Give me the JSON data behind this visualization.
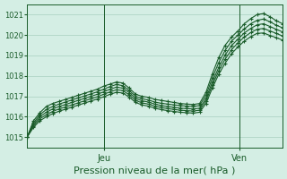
{
  "title": "Pression niveau de la mer( hPa )",
  "bg_color": "#d4eee4",
  "grid_color": "#a8cfc0",
  "line_color": "#1a5c2a",
  "ylim": [
    1014.5,
    1021.5
  ],
  "yticks": [
    1015,
    1016,
    1017,
    1018,
    1019,
    1020,
    1021
  ],
  "xtick_labels": [
    "Jeu",
    "Ven"
  ],
  "xtick_positions": [
    0.3,
    0.83
  ],
  "n_points": 41,
  "lines": [
    [
      1015.0,
      1015.8,
      1016.2,
      1016.5,
      1016.65,
      1016.75,
      1016.85,
      1016.95,
      1017.05,
      1017.15,
      1017.25,
      1017.35,
      1017.5,
      1017.6,
      1017.7,
      1017.65,
      1017.4,
      1017.1,
      1017.0,
      1016.95,
      1016.85,
      1016.8,
      1016.75,
      1016.7,
      1016.65,
      1016.62,
      1016.6,
      1016.65,
      1017.2,
      1018.1,
      1018.9,
      1019.5,
      1019.9,
      1020.2,
      1020.55,
      1020.8,
      1021.0,
      1021.05,
      1020.9,
      1020.7,
      1020.55
    ],
    [
      1015.0,
      1015.7,
      1016.1,
      1016.35,
      1016.5,
      1016.62,
      1016.72,
      1016.82,
      1016.92,
      1017.02,
      1017.12,
      1017.22,
      1017.35,
      1017.48,
      1017.58,
      1017.52,
      1017.28,
      1017.0,
      1016.88,
      1016.82,
      1016.72,
      1016.66,
      1016.62,
      1016.58,
      1016.55,
      1016.52,
      1016.5,
      1016.55,
      1017.05,
      1017.9,
      1018.65,
      1019.25,
      1019.7,
      1020.0,
      1020.3,
      1020.55,
      1020.72,
      1020.78,
      1020.65,
      1020.48,
      1020.35
    ],
    [
      1015.0,
      1015.62,
      1016.0,
      1016.22,
      1016.38,
      1016.5,
      1016.6,
      1016.7,
      1016.8,
      1016.9,
      1017.0,
      1017.1,
      1017.22,
      1017.35,
      1017.45,
      1017.4,
      1017.18,
      1016.9,
      1016.78,
      1016.72,
      1016.62,
      1016.55,
      1016.5,
      1016.46,
      1016.42,
      1016.4,
      1016.38,
      1016.42,
      1016.9,
      1017.7,
      1018.42,
      1019.02,
      1019.48,
      1019.8,
      1020.1,
      1020.32,
      1020.5,
      1020.55,
      1020.42,
      1020.28,
      1020.15
    ],
    [
      1015.0,
      1015.55,
      1015.9,
      1016.1,
      1016.26,
      1016.38,
      1016.48,
      1016.58,
      1016.68,
      1016.78,
      1016.88,
      1016.98,
      1017.1,
      1017.22,
      1017.32,
      1017.28,
      1017.07,
      1016.8,
      1016.68,
      1016.62,
      1016.52,
      1016.45,
      1016.4,
      1016.36,
      1016.32,
      1016.3,
      1016.28,
      1016.32,
      1016.78,
      1017.55,
      1018.25,
      1018.82,
      1019.28,
      1019.62,
      1019.9,
      1020.12,
      1020.28,
      1020.32,
      1020.2,
      1020.08,
      1019.95
    ],
    [
      1015.0,
      1015.48,
      1015.8,
      1016.0,
      1016.15,
      1016.27,
      1016.37,
      1016.47,
      1016.57,
      1016.67,
      1016.77,
      1016.87,
      1016.98,
      1017.1,
      1017.2,
      1017.16,
      1016.96,
      1016.7,
      1016.58,
      1016.52,
      1016.42,
      1016.35,
      1016.3,
      1016.26,
      1016.22,
      1016.2,
      1016.18,
      1016.22,
      1016.65,
      1017.4,
      1018.08,
      1018.62,
      1019.08,
      1019.42,
      1019.7,
      1019.92,
      1020.08,
      1020.1,
      1019.98,
      1019.87,
      1019.75
    ]
  ]
}
